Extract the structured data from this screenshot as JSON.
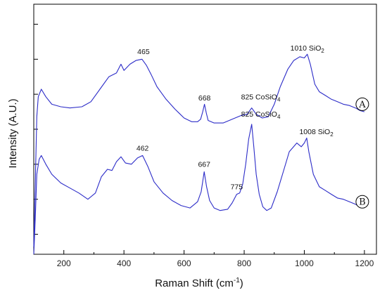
{
  "chart_data": {
    "type": "line",
    "title": "",
    "xlabel": "Raman Shift (cm",
    "xlabel_sup": "-1",
    "xlabel_end": ")",
    "ylabel": "Intensity (A.U.)",
    "xlim": [
      100,
      1240
    ],
    "ylim": [
      0,
      100
    ],
    "x_ticks": [
      200,
      400,
      600,
      800,
      1000,
      1200
    ],
    "y_minor_ticks": [
      8,
      22,
      36,
      50,
      64,
      78,
      92
    ],
    "grid": false,
    "line_color": "#2c2cc8",
    "series": [
      {
        "marker": "A",
        "points": [
          [
            100,
            3
          ],
          [
            105,
            28
          ],
          [
            110,
            55
          ],
          [
            115,
            63
          ],
          [
            125,
            66
          ],
          [
            140,
            63
          ],
          [
            160,
            60
          ],
          [
            190,
            59
          ],
          [
            220,
            58.5
          ],
          [
            260,
            59
          ],
          [
            290,
            61
          ],
          [
            320,
            66
          ],
          [
            350,
            71
          ],
          [
            375,
            72.5
          ],
          [
            390,
            76
          ],
          [
            400,
            73.5
          ],
          [
            420,
            76
          ],
          [
            440,
            77.5
          ],
          [
            460,
            78
          ],
          [
            475,
            75.5
          ],
          [
            490,
            72
          ],
          [
            510,
            67
          ],
          [
            540,
            62
          ],
          [
            570,
            58
          ],
          [
            600,
            54.5
          ],
          [
            625,
            53
          ],
          [
            645,
            53
          ],
          [
            655,
            54
          ],
          [
            662,
            57
          ],
          [
            668,
            60
          ],
          [
            674,
            56.5
          ],
          [
            680,
            53.5
          ],
          [
            700,
            52.5
          ],
          [
            730,
            52.5
          ],
          [
            760,
            54
          ],
          [
            790,
            55.5
          ],
          [
            810,
            56
          ],
          [
            825,
            58.5
          ],
          [
            840,
            56
          ],
          [
            860,
            54.5
          ],
          [
            880,
            55
          ],
          [
            900,
            60
          ],
          [
            920,
            67
          ],
          [
            945,
            74
          ],
          [
            965,
            77.5
          ],
          [
            985,
            79
          ],
          [
            1000,
            78.5
          ],
          [
            1010,
            80
          ],
          [
            1020,
            76
          ],
          [
            1035,
            68
          ],
          [
            1050,
            65
          ],
          [
            1070,
            63.5
          ],
          [
            1090,
            62
          ],
          [
            1110,
            61
          ],
          [
            1130,
            60
          ],
          [
            1150,
            59.5
          ],
          [
            1170,
            58.5
          ],
          [
            1185,
            57.5
          ],
          [
            1200,
            57
          ]
        ]
      },
      {
        "marker": "B",
        "points": [
          [
            100,
            0
          ],
          [
            105,
            14
          ],
          [
            110,
            32
          ],
          [
            118,
            38
          ],
          [
            125,
            39.5
          ],
          [
            140,
            36
          ],
          [
            160,
            32
          ],
          [
            190,
            28.5
          ],
          [
            220,
            26.5
          ],
          [
            250,
            24.5
          ],
          [
            280,
            22
          ],
          [
            305,
            24.5
          ],
          [
            325,
            31
          ],
          [
            345,
            34
          ],
          [
            360,
            33.5
          ],
          [
            375,
            37
          ],
          [
            390,
            39
          ],
          [
            405,
            36.5
          ],
          [
            425,
            36
          ],
          [
            445,
            38.5
          ],
          [
            462,
            39.5
          ],
          [
            480,
            35
          ],
          [
            500,
            29
          ],
          [
            530,
            24.5
          ],
          [
            560,
            21.5
          ],
          [
            590,
            19.5
          ],
          [
            620,
            18.5
          ],
          [
            645,
            21
          ],
          [
            657,
            25
          ],
          [
            667,
            33
          ],
          [
            675,
            27
          ],
          [
            685,
            21.5
          ],
          [
            700,
            18.5
          ],
          [
            720,
            17.5
          ],
          [
            745,
            18
          ],
          [
            760,
            20.5
          ],
          [
            775,
            24
          ],
          [
            785,
            24.5
          ],
          [
            795,
            28
          ],
          [
            805,
            36
          ],
          [
            815,
            46
          ],
          [
            825,
            52
          ],
          [
            832,
            43
          ],
          [
            840,
            32
          ],
          [
            850,
            24
          ],
          [
            862,
            19
          ],
          [
            875,
            17.5
          ],
          [
            890,
            18.5
          ],
          [
            910,
            25
          ],
          [
            930,
            33
          ],
          [
            950,
            41
          ],
          [
            975,
            44.5
          ],
          [
            990,
            43
          ],
          [
            1000,
            44.5
          ],
          [
            1008,
            46.5
          ],
          [
            1015,
            41
          ],
          [
            1030,
            32
          ],
          [
            1050,
            27
          ],
          [
            1070,
            25.5
          ],
          [
            1090,
            24
          ],
          [
            1110,
            22.5
          ],
          [
            1130,
            22
          ],
          [
            1150,
            21
          ],
          [
            1170,
            20
          ],
          [
            1185,
            19
          ],
          [
            1200,
            18.5
          ]
        ]
      }
    ],
    "annotations": [
      {
        "text": "465",
        "x": 465,
        "y": 80
      },
      {
        "text": "668",
        "x": 668,
        "y": 61.5
      },
      {
        "text": "825 CoSiO",
        "sub": "4",
        "x": 855,
        "y": 62
      },
      {
        "text": "1010 SiO",
        "sub": "2",
        "x": 1010,
        "y": 81.5
      },
      {
        "text": "825 CoSiO",
        "sub": "4",
        "x": 855,
        "y": 55
      },
      {
        "text": "462",
        "x": 462,
        "y": 41.5
      },
      {
        "text": "667",
        "x": 667,
        "y": 35
      },
      {
        "text": "775",
        "x": 775,
        "y": 26
      },
      {
        "text": "1008 SiO",
        "sub": "2",
        "x": 1040,
        "y": 48
      }
    ],
    "markers": [
      {
        "text": "A",
        "x": 1200,
        "y": 60
      },
      {
        "text": "B",
        "x": 1200,
        "y": 21
      }
    ]
  }
}
